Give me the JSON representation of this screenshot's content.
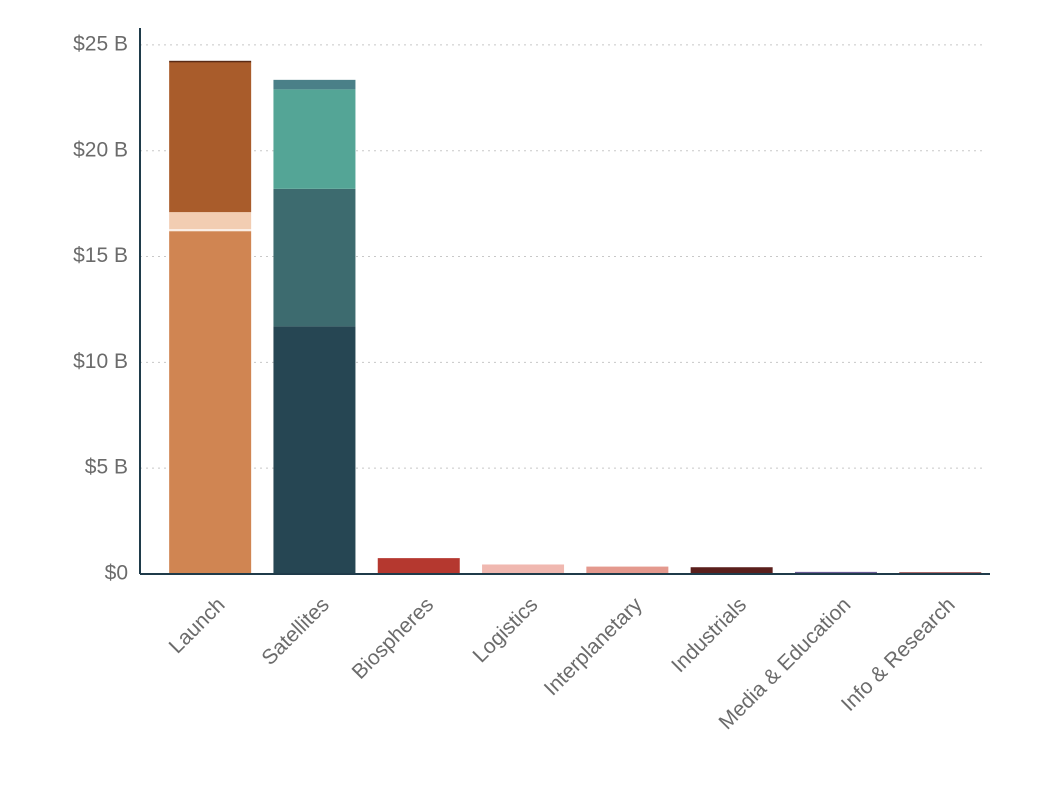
{
  "chart_data": {
    "type": "bar",
    "stacked": true,
    "categories": [
      "Launch",
      "Satellites",
      "Biospheres",
      "Logistics",
      "Interplanetary",
      "Industrials",
      "Media & Education",
      "Info & Research"
    ],
    "series": [
      {
        "values": [
          16.2,
          11.7,
          0.75,
          0.45,
          0.35,
          0.32,
          0.1,
          0.08
        ],
        "colors": [
          "#d08552",
          "#264653",
          "#b5382f",
          "#f0b8b0",
          "#e4998e",
          "#5a1f1c",
          "#6b5b95",
          "#8b2a2a"
        ]
      },
      {
        "values": [
          0.1,
          6.5,
          null,
          null,
          null,
          null,
          null,
          null
        ],
        "colors": [
          "#fbeee5",
          "#3d6b6f",
          null,
          null,
          null,
          null,
          null,
          null
        ]
      },
      {
        "values": [
          0.8,
          4.7,
          null,
          null,
          null,
          null,
          null,
          null
        ],
        "colors": [
          "#f2cdb2",
          "#54a596",
          null,
          null,
          null,
          null,
          null,
          null
        ]
      },
      {
        "values": [
          7.1,
          0.45,
          null,
          null,
          null,
          null,
          null,
          null
        ],
        "colors": [
          "#a95c2b",
          "#4a8088",
          null,
          null,
          null,
          null,
          null,
          null
        ]
      },
      {
        "values": [
          0.05,
          null,
          null,
          null,
          null,
          null,
          null,
          null
        ],
        "colors": [
          "#5a2a14",
          null,
          null,
          null,
          null,
          null,
          null,
          null
        ]
      }
    ],
    "ylim": [
      0,
      25.8
    ],
    "yticks": [
      {
        "value": 0,
        "label": "$0"
      },
      {
        "value": 5,
        "label": "$5 B"
      },
      {
        "value": 10,
        "label": "$10 B"
      },
      {
        "value": 15,
        "label": "$15 B"
      },
      {
        "value": 20,
        "label": "$20 B"
      },
      {
        "value": 25,
        "label": "$25 B"
      }
    ],
    "grid": true
  }
}
